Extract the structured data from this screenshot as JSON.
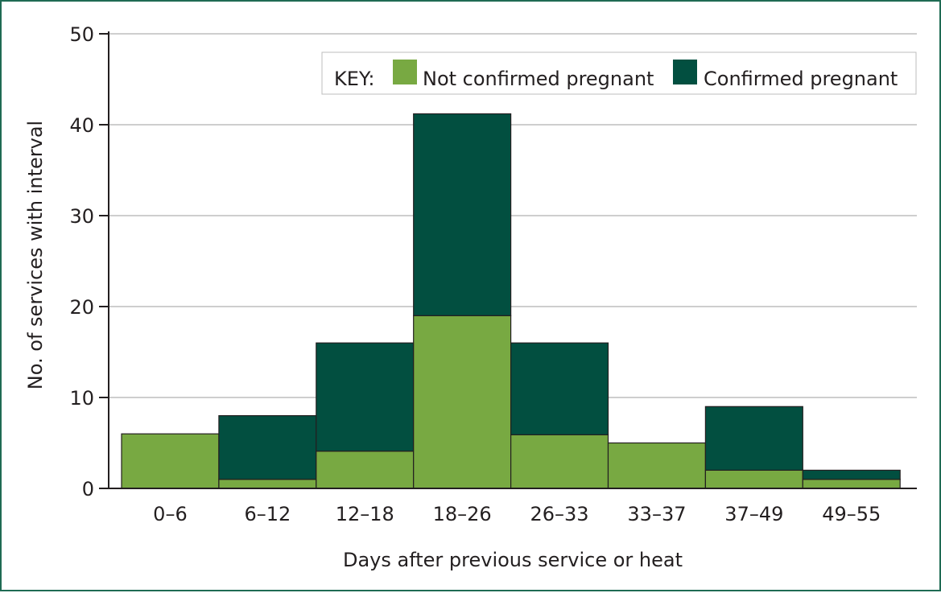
{
  "chart_data": {
    "type": "bar",
    "stacked": true,
    "categories": [
      "0–6",
      "6–12",
      "12–18",
      "18–26",
      "26–33",
      "33–37",
      "37–49",
      "49–55"
    ],
    "series": [
      {
        "name": "Not confirmed pregnant",
        "values": [
          6,
          1,
          4.1,
          19,
          5.9,
          5,
          2,
          1
        ],
        "color": "#78a942"
      },
      {
        "name": "Confirmed pregnant",
        "values": [
          0,
          7,
          11.9,
          22.2,
          10.1,
          0,
          7,
          1
        ],
        "color": "#024f40"
      }
    ],
    "xlabel": "Days after previous service or heat",
    "ylabel": "No. of services with interval",
    "ylim": [
      0,
      50
    ],
    "yticks": [
      0,
      10,
      20,
      30,
      40,
      50
    ],
    "grid": true,
    "legend": {
      "title": "KEY:",
      "placement": "top-right"
    }
  }
}
